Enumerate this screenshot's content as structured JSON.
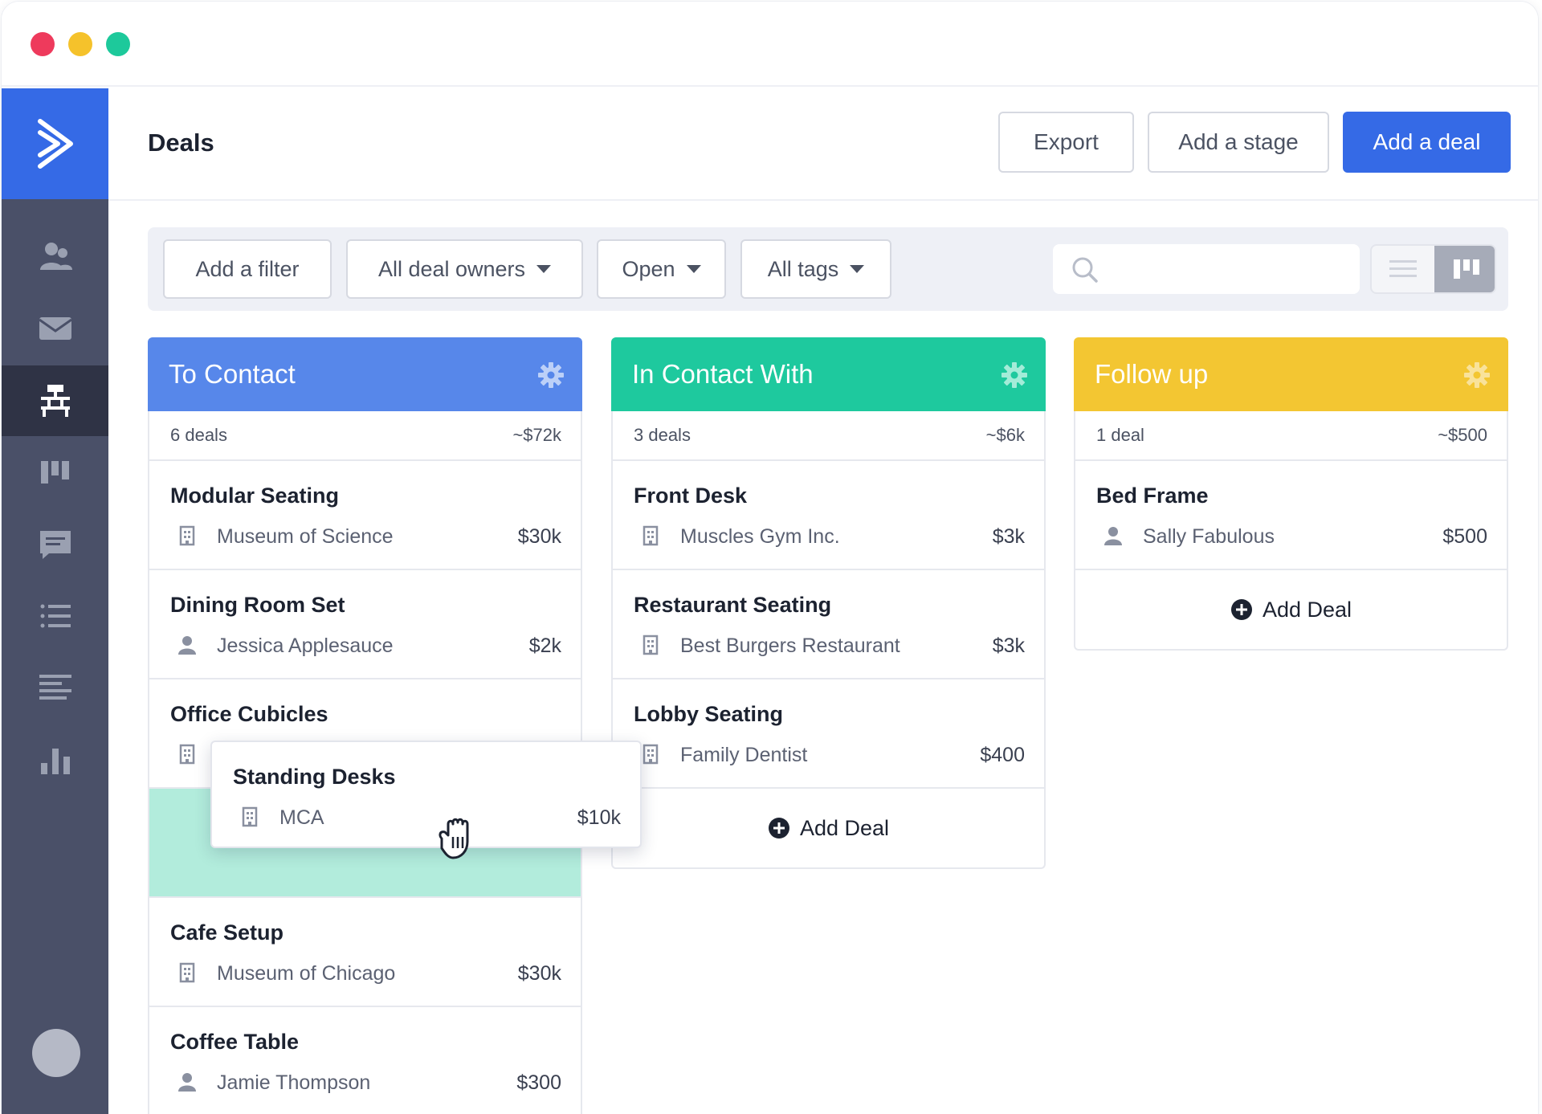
{
  "header": {
    "title": "Deals",
    "export_label": "Export",
    "add_stage_label": "Add a stage",
    "add_deal_label": "Add a deal"
  },
  "sidebar": {
    "items": [
      {
        "icon": "contacts-icon"
      },
      {
        "icon": "mail-icon"
      },
      {
        "icon": "deals-icon",
        "active": true
      },
      {
        "icon": "board-icon"
      },
      {
        "icon": "chat-icon"
      },
      {
        "icon": "list-icon"
      },
      {
        "icon": "reports-icon"
      },
      {
        "icon": "bar-chart-icon"
      }
    ]
  },
  "filters": {
    "add_filter": "Add a filter",
    "owners": "All deal owners",
    "status": "Open",
    "tags": "All tags",
    "search_placeholder": ""
  },
  "colors": {
    "to_contact": "#5787ea",
    "in_contact": "#1ec99e",
    "follow_up": "#f3c632",
    "primary": "#356ae6"
  },
  "columns": [
    {
      "title": "To Contact",
      "count": "6 deals",
      "total": "~$72k",
      "cards": [
        {
          "title": "Modular Seating",
          "sub": "Museum of Science",
          "value": "$30k",
          "icon": "building-icon"
        },
        {
          "title": "Dining Room Set",
          "sub": "Jessica Applesauce",
          "value": "$2k",
          "icon": "person-icon"
        },
        {
          "title": "Office Cubicles",
          "sub": "",
          "value": "",
          "icon": "building-icon"
        },
        {
          "title": "Cafe Setup",
          "sub": "Museum of Chicago",
          "value": "$30k",
          "icon": "building-icon"
        },
        {
          "title": "Coffee Table",
          "sub": "Jamie Thompson",
          "value": "$300",
          "icon": "person-icon"
        }
      ]
    },
    {
      "title": "In Contact With",
      "count": "3 deals",
      "total": "~$6k",
      "cards": [
        {
          "title": "Front Desk",
          "sub": "Muscles Gym Inc.",
          "value": "$3k",
          "icon": "building-icon"
        },
        {
          "title": "Restaurant Seating",
          "sub": "Best Burgers Restaurant",
          "value": "$3k",
          "icon": "building-icon"
        },
        {
          "title": "Lobby Seating",
          "sub": "Family Dentist",
          "value": "$400",
          "icon": "building-icon"
        }
      ],
      "add_label": "Add Deal"
    },
    {
      "title": "Follow up",
      "count": "1 deal",
      "total": "~$500",
      "cards": [
        {
          "title": "Bed Frame",
          "sub": "Sally Fabulous",
          "value": "$500",
          "icon": "person-icon"
        }
      ],
      "add_label": "Add Deal"
    }
  ],
  "dragging": {
    "title": "Standing Desks",
    "sub": "MCA",
    "value": "$10k",
    "icon": "building-icon"
  }
}
